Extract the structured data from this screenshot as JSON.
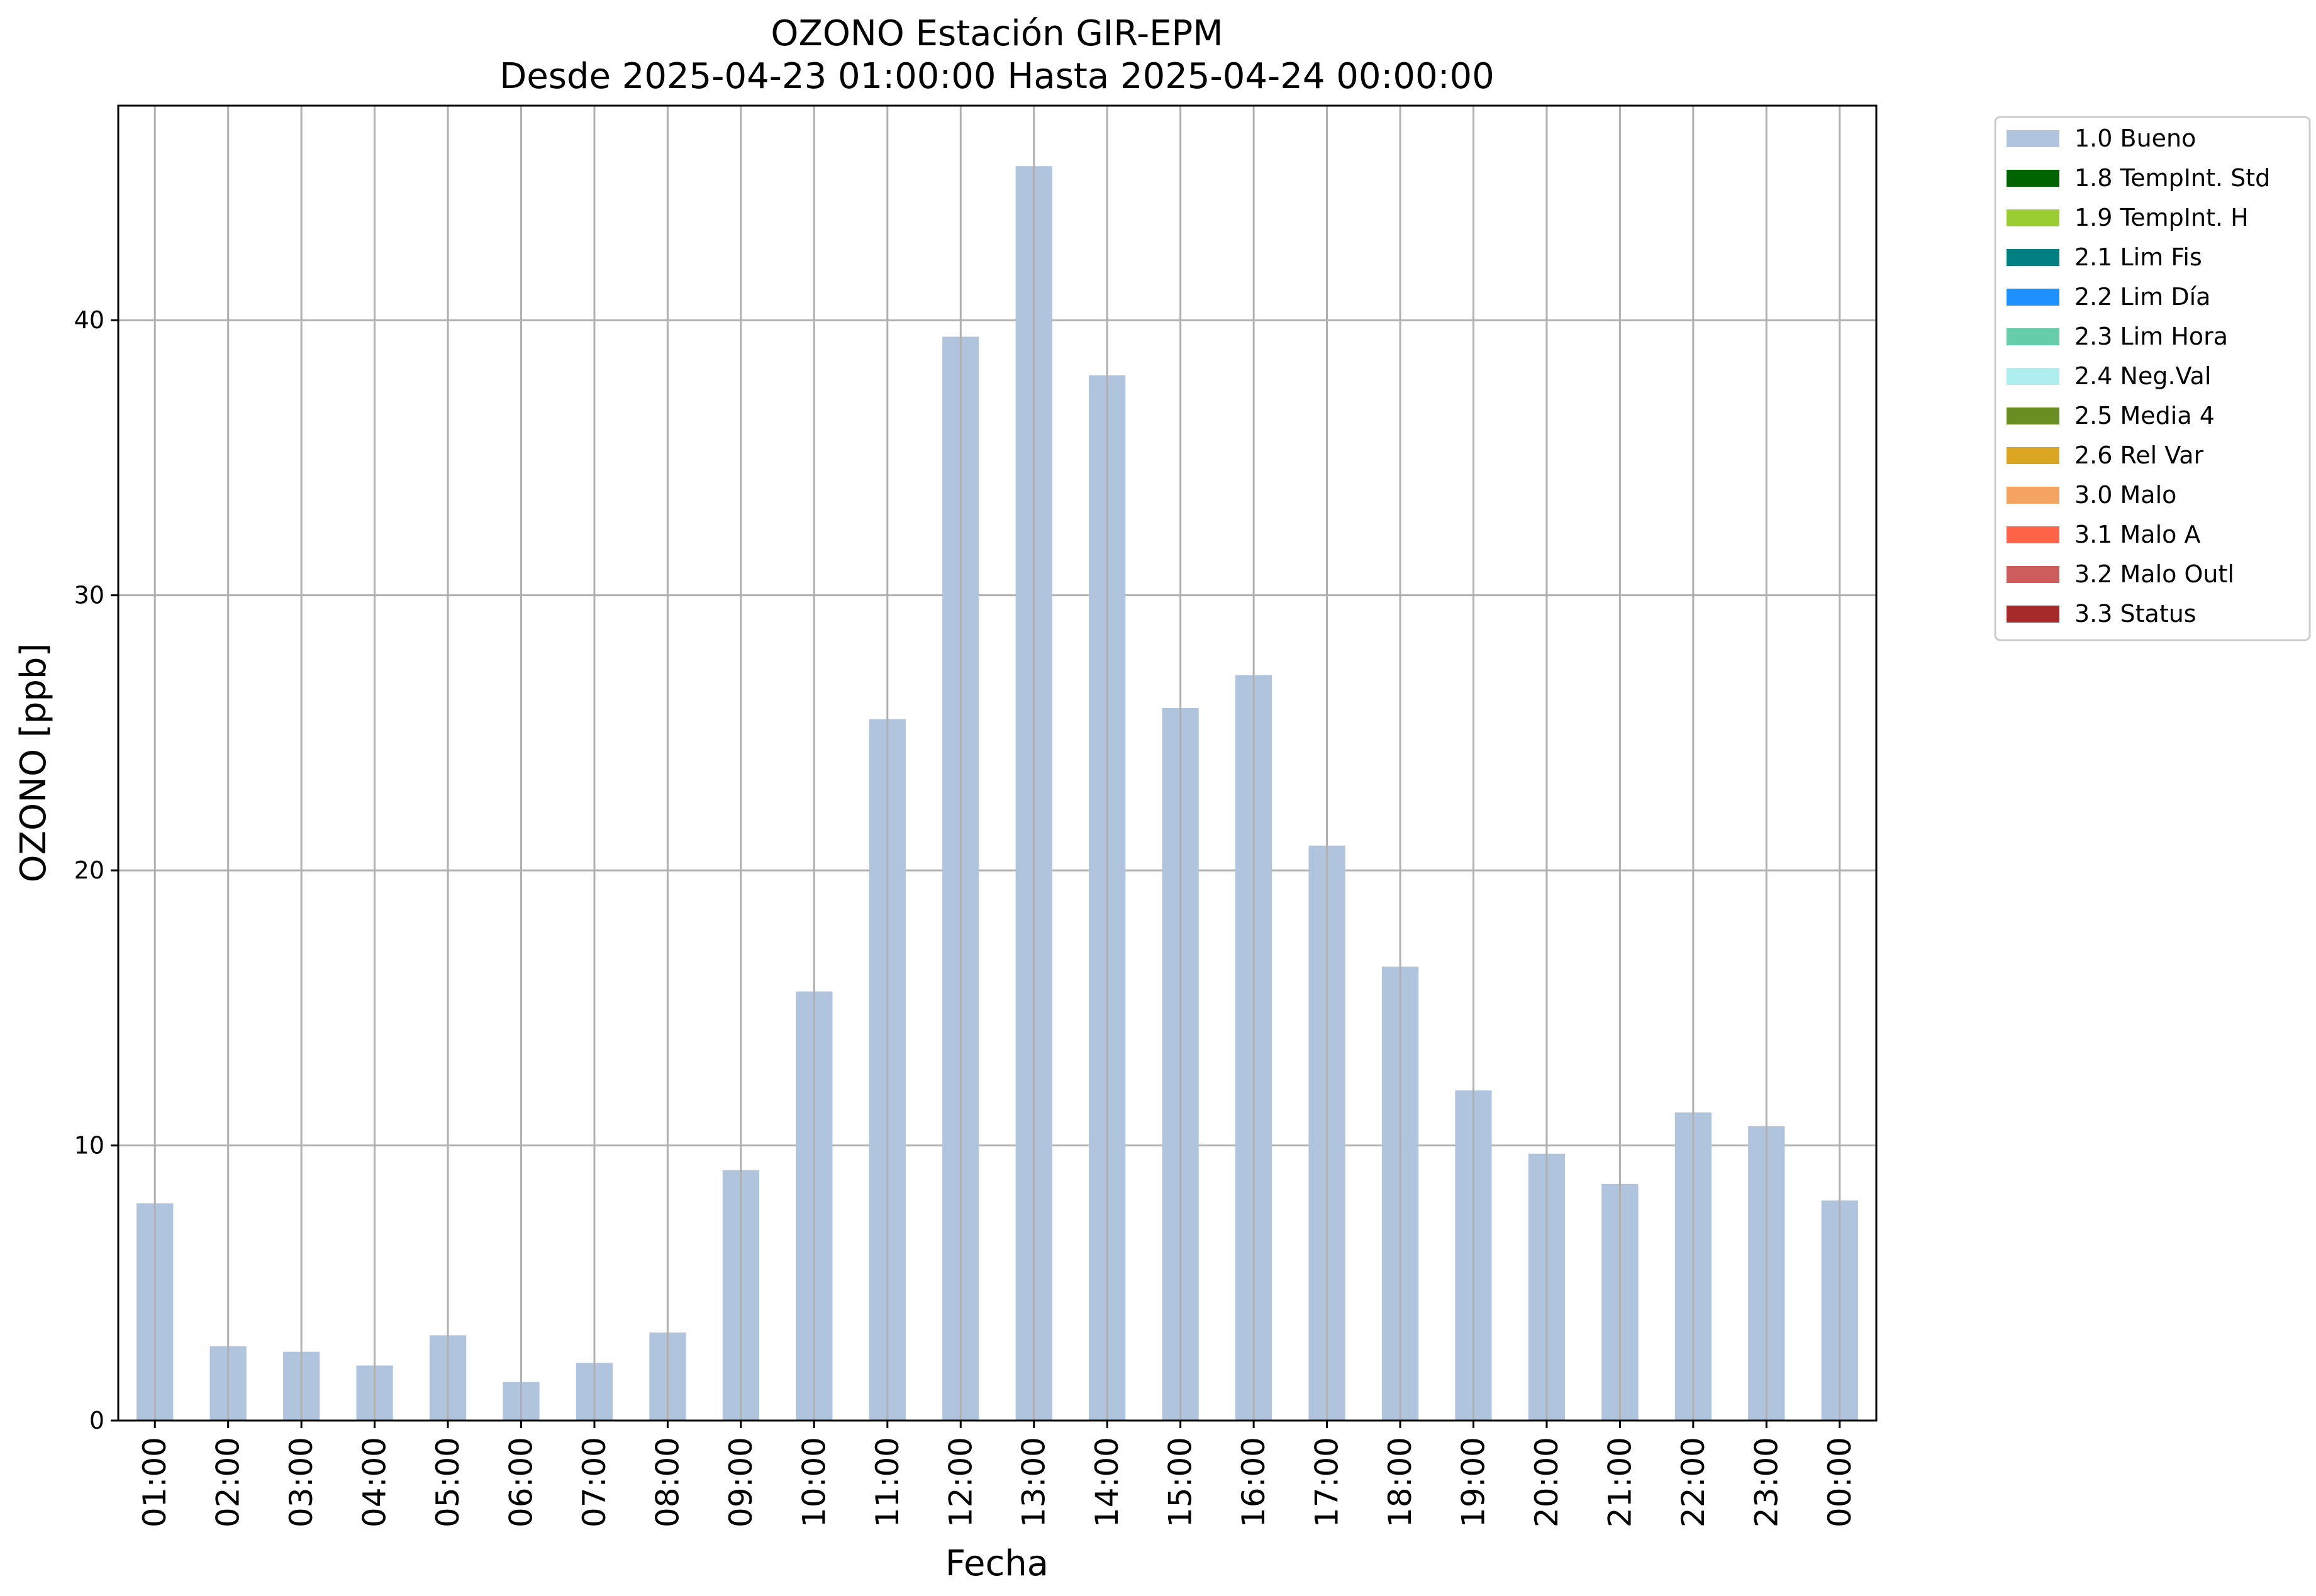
{
  "chart_data": {
    "type": "bar",
    "title": "OZONO Estación GIR-EPM",
    "subtitle": "Desde 2025-04-23 01:00:00 Hasta 2025-04-24 00:00:00",
    "xlabel": "Fecha",
    "ylabel": "OZONO [ppb]",
    "ylim": [
      0,
      47.8
    ],
    "yticks": [
      0,
      10,
      20,
      30,
      40
    ],
    "grid": true,
    "legend_position": "outside-top-right",
    "categories": [
      "01:00",
      "02:00",
      "03:00",
      "04:00",
      "05:00",
      "06:00",
      "07:00",
      "08:00",
      "09:00",
      "10:00",
      "11:00",
      "12:00",
      "13:00",
      "14:00",
      "15:00",
      "16:00",
      "17:00",
      "18:00",
      "19:00",
      "20:00",
      "21:00",
      "22:00",
      "23:00",
      "00:00"
    ],
    "series": [
      {
        "name": "1.0 Bueno",
        "color": "#b0c4de",
        "values": [
          7.9,
          2.7,
          2.5,
          2.0,
          3.1,
          1.4,
          2.1,
          3.2,
          9.1,
          15.6,
          25.5,
          39.4,
          45.6,
          38.0,
          25.9,
          27.1,
          20.9,
          16.5,
          12.0,
          9.7,
          8.6,
          11.2,
          10.7,
          8.0
        ]
      }
    ],
    "legend": [
      {
        "label": "1.0 Bueno",
        "color": "#b0c4de"
      },
      {
        "label": "1.8 TempInt. Std",
        "color": "#006400"
      },
      {
        "label": "1.9 TempInt. H",
        "color": "#9acd32"
      },
      {
        "label": "2.1 Lim Fis",
        "color": "#008080"
      },
      {
        "label": "2.2 Lim Día",
        "color": "#1e90ff"
      },
      {
        "label": "2.3 Lim Hora",
        "color": "#66cdaa"
      },
      {
        "label": "2.4 Neg.Val",
        "color": "#afeeee"
      },
      {
        "label": "2.5 Media 4",
        "color": "#6b8e23"
      },
      {
        "label": "2.6 Rel Var",
        "color": "#daa520"
      },
      {
        "label": "3.0 Malo",
        "color": "#f4a460"
      },
      {
        "label": "3.1 Malo A",
        "color": "#ff6347"
      },
      {
        "label": "3.2 Malo Outl",
        "color": "#cd5c5c"
      },
      {
        "label": "3.3 Status",
        "color": "#a52a2a"
      }
    ]
  }
}
